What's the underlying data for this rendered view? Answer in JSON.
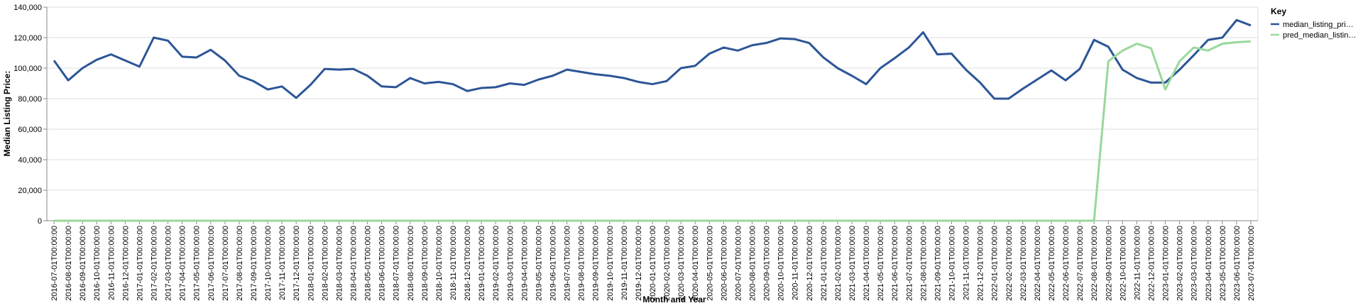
{
  "chart_data": {
    "type": "line",
    "x_label": "Month and Year",
    "y_label": "Median Listing Price:",
    "legend_title": "Key",
    "legend_position": "right",
    "grid": true,
    "categories": [
      "2016-07-01T00:00:00",
      "2016-08-01T00:00:00",
      "2016-09-01T00:00:00",
      "2016-10-01T00:00:00",
      "2016-11-01T00:00:00",
      "2016-12-01T00:00:00",
      "2017-01-01T00:00:00",
      "2017-02-01T00:00:00",
      "2017-03-01T00:00:00",
      "2017-04-01T00:00:00",
      "2017-05-01T00:00:00",
      "2017-06-01T00:00:00",
      "2017-07-01T00:00:00",
      "2017-08-01T00:00:00",
      "2017-09-01T00:00:00",
      "2017-10-01T00:00:00",
      "2017-11-01T00:00:00",
      "2017-12-01T00:00:00",
      "2018-01-01T00:00:00",
      "2018-02-01T00:00:00",
      "2018-03-01T00:00:00",
      "2018-04-01T00:00:00",
      "2018-05-01T00:00:00",
      "2018-06-01T00:00:00",
      "2018-07-01T00:00:00",
      "2018-08-01T00:00:00",
      "2018-09-01T00:00:00",
      "2018-10-01T00:00:00",
      "2018-11-01T00:00:00",
      "2018-12-01T00:00:00",
      "2019-01-01T00:00:00",
      "2019-02-01T00:00:00",
      "2019-03-01T00:00:00",
      "2019-04-01T00:00:00",
      "2019-05-01T00:00:00",
      "2019-06-01T00:00:00",
      "2019-07-01T00:00:00",
      "2019-08-01T00:00:00",
      "2019-09-01T00:00:00",
      "2019-10-01T00:00:00",
      "2019-11-01T00:00:00",
      "2019-12-01T00:00:00",
      "2020-01-01T00:00:00",
      "2020-02-01T00:00:00",
      "2020-03-01T00:00:00",
      "2020-04-01T00:00:00",
      "2020-05-01T00:00:00",
      "2020-06-01T00:00:00",
      "2020-07-01T00:00:00",
      "2020-08-01T00:00:00",
      "2020-09-01T00:00:00",
      "2020-10-01T00:00:00",
      "2020-11-01T00:00:00",
      "2020-12-01T00:00:00",
      "2021-01-01T00:00:00",
      "2021-02-01T00:00:00",
      "2021-03-01T00:00:00",
      "2021-04-01T00:00:00",
      "2021-05-01T00:00:00",
      "2021-06-01T00:00:00",
      "2021-07-01T00:00:00",
      "2021-08-01T00:00:00",
      "2021-09-01T00:00:00",
      "2021-10-01T00:00:00",
      "2021-11-01T00:00:00",
      "2021-12-01T00:00:00",
      "2022-01-01T00:00:00",
      "2022-02-01T00:00:00",
      "2022-03-01T00:00:00",
      "2022-04-01T00:00:00",
      "2022-05-01T00:00:00",
      "2022-06-01T00:00:00",
      "2022-07-01T00:00:00",
      "2022-08-01T00:00:00",
      "2022-09-01T00:00:00",
      "2022-10-01T00:00:00",
      "2022-11-01T00:00:00",
      "2022-12-01T00:00:00",
      "2023-01-01T00:00:00",
      "2023-02-01T00:00:00",
      "2023-03-01T00:00:00",
      "2023-04-01T00:00:00",
      "2023-05-01T00:00:00",
      "2023-06-01T00:00:00",
      "2023-07-01T00:00:00"
    ],
    "series": [
      {
        "name": "median_listing_pri…",
        "color": "#2c5597",
        "values": [
          105000,
          92000,
          100000,
          105500,
          109000,
          105000,
          101000,
          120000,
          118000,
          107500,
          107000,
          112000,
          105000,
          95000,
          91500,
          86000,
          88000,
          80500,
          89000,
          99500,
          99000,
          99500,
          95000,
          88000,
          87500,
          93500,
          90000,
          91000,
          89500,
          85000,
          87000,
          87500,
          90000,
          89000,
          92500,
          95000,
          99000,
          97500,
          96000,
          95000,
          93500,
          91000,
          89500,
          91500,
          100000,
          101500,
          109500,
          113500,
          111500,
          115000,
          116500,
          119500,
          119000,
          116500,
          107000,
          100000,
          95000,
          89500,
          100000,
          106500,
          113500,
          123500,
          109000,
          109500,
          99000,
          90500,
          80000,
          80000,
          86500,
          92500,
          98500,
          92000,
          99500,
          118500,
          114000,
          99000,
          93500,
          90500,
          90500,
          99000,
          108500,
          118500,
          120000,
          131500,
          128000
        ]
      },
      {
        "name": "pred_median_listin…",
        "color": "#98d89a",
        "values": [
          0,
          0,
          0,
          0,
          0,
          0,
          0,
          0,
          0,
          0,
          0,
          0,
          0,
          0,
          0,
          0,
          0,
          0,
          0,
          0,
          0,
          0,
          0,
          0,
          0,
          0,
          0,
          0,
          0,
          0,
          0,
          0,
          0,
          0,
          0,
          0,
          0,
          0,
          0,
          0,
          0,
          0,
          0,
          0,
          0,
          0,
          0,
          0,
          0,
          0,
          0,
          0,
          0,
          0,
          0,
          0,
          0,
          0,
          0,
          0,
          0,
          0,
          0,
          0,
          0,
          0,
          0,
          0,
          0,
          0,
          0,
          0,
          0,
          0,
          104500,
          111500,
          116000,
          113000,
          86000,
          104500,
          113500,
          111500,
          116000,
          117000,
          117500
        ]
      }
    ],
    "ylim": [
      0,
      140000
    ],
    "yticks": [
      0,
      {
        "value": 20000,
        "label": "20,000"
      },
      {
        "value": 40000,
        "label": "40,000"
      },
      {
        "value": 60000,
        "label": "60,000"
      },
      {
        "value": 80000,
        "label": "80,000"
      },
      {
        "value": 100000,
        "label": "100,000"
      },
      {
        "value": 120000,
        "label": "120,000"
      },
      {
        "value": 140000,
        "label": "140,000"
      }
    ]
  }
}
